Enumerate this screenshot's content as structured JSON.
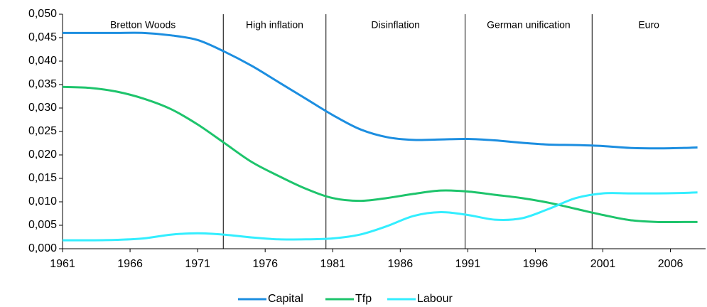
{
  "chart_data": {
    "type": "line",
    "x": [
      1961,
      1963,
      1965,
      1967,
      1969,
      1971,
      1973,
      1975,
      1977,
      1979,
      1981,
      1983,
      1985,
      1987,
      1989,
      1991,
      1993,
      1995,
      1997,
      1999,
      2001,
      2003,
      2005,
      2007,
      2008
    ],
    "series": [
      {
        "name": "Capital",
        "color": "#1c8ee0",
        "values": [
          0.046,
          0.046,
          0.046,
          0.046,
          0.0455,
          0.0445,
          0.042,
          0.039,
          0.0355,
          0.032,
          0.0285,
          0.0255,
          0.0238,
          0.0232,
          0.0233,
          0.0234,
          0.0231,
          0.0226,
          0.0222,
          0.0221,
          0.0219,
          0.0215,
          0.0214,
          0.0215,
          0.0216
        ]
      },
      {
        "name": "Tfp",
        "color": "#1ec46c",
        "values": [
          0.0345,
          0.0343,
          0.0335,
          0.032,
          0.0298,
          0.0265,
          0.0225,
          0.0185,
          0.0155,
          0.0128,
          0.0108,
          0.0102,
          0.0108,
          0.0117,
          0.0124,
          0.0122,
          0.0115,
          0.0108,
          0.0098,
          0.0085,
          0.0072,
          0.0061,
          0.0057,
          0.0057,
          0.0057
        ]
      },
      {
        "name": "Labour",
        "color": "#33eeff",
        "values": [
          0.0018,
          0.0018,
          0.0019,
          0.0022,
          0.003,
          0.0033,
          0.003,
          0.0024,
          0.002,
          0.002,
          0.0022,
          0.003,
          0.0048,
          0.007,
          0.0078,
          0.0072,
          0.0062,
          0.0065,
          0.0085,
          0.0108,
          0.0118,
          0.0118,
          0.0118,
          0.0119,
          0.012
        ]
      }
    ],
    "xlim": [
      1961,
      2008.6
    ],
    "xticks": [
      1961,
      1966,
      1971,
      1976,
      1981,
      1986,
      1991,
      1996,
      2001,
      2006
    ],
    "ylim": [
      0,
      0.05
    ],
    "yticks": [
      {
        "value": 0,
        "label": "0,000"
      },
      {
        "value": 0.005,
        "label": "0,005"
      },
      {
        "value": 0.01,
        "label": "0,010"
      },
      {
        "value": 0.015,
        "label": "0,015"
      },
      {
        "value": 0.02,
        "label": "0,020"
      },
      {
        "value": 0.025,
        "label": "0,025"
      },
      {
        "value": 0.03,
        "label": "0,030"
      },
      {
        "value": 0.035,
        "label": "0,035"
      },
      {
        "value": 0.04,
        "label": "0,040"
      },
      {
        "value": 0.045,
        "label": "0,045"
      },
      {
        "value": 0.05,
        "label": "0,050"
      }
    ],
    "periods": [
      "Bretton Woods",
      "High inflation",
      "Disinflation",
      "German unification",
      "Euro"
    ],
    "dividers": [
      1972.9,
      1980.5,
      1990.8,
      2000.2
    ],
    "legend": "bottom"
  }
}
